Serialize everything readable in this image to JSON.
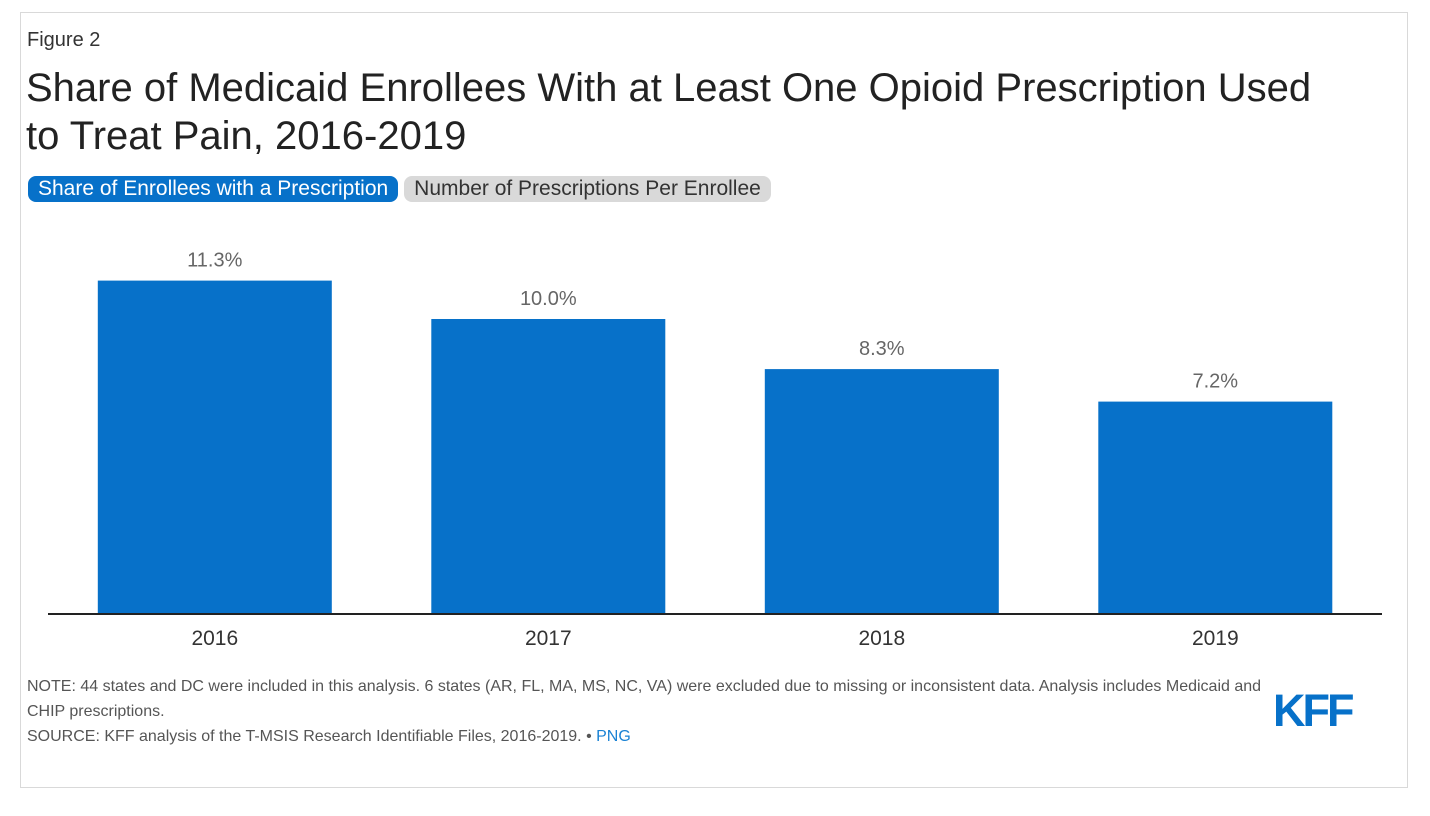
{
  "figure_label": "Figure 2",
  "title": "Share of Medicaid Enrollees With at Least One Opioid Prescription Used to Treat Pain, 2016-2019",
  "tabs": [
    {
      "label": "Share of Enrollees with a Prescription",
      "active": true
    },
    {
      "label": "Number of Prescriptions Per Enrollee",
      "active": false
    }
  ],
  "colors": {
    "bar": "#0771c9",
    "axis": "#222222",
    "data_label": "#666666",
    "tick_label": "#333333"
  },
  "chart_data": {
    "type": "bar",
    "categories": [
      "2016",
      "2017",
      "2018",
      "2019"
    ],
    "values": [
      11.3,
      10.0,
      8.3,
      7.2
    ],
    "data_labels": [
      "11.3%",
      "10.0%",
      "8.3%",
      "7.2%"
    ],
    "title": "",
    "xlabel": "",
    "ylabel": "",
    "ylim": [
      0,
      12
    ],
    "grid": false,
    "legend": "none"
  },
  "notes": {
    "note": "NOTE: 44 states and DC were included in this analysis. 6 states (AR, FL, MA, MS, NC, VA) were excluded due to missing or inconsistent data. Analysis includes Medicaid and CHIP prescriptions.",
    "source": "SOURCE: KFF analysis of the T-MSIS Research Identifiable Files, 2016-2019. • ",
    "link": "PNG"
  },
  "logo": "KFF"
}
